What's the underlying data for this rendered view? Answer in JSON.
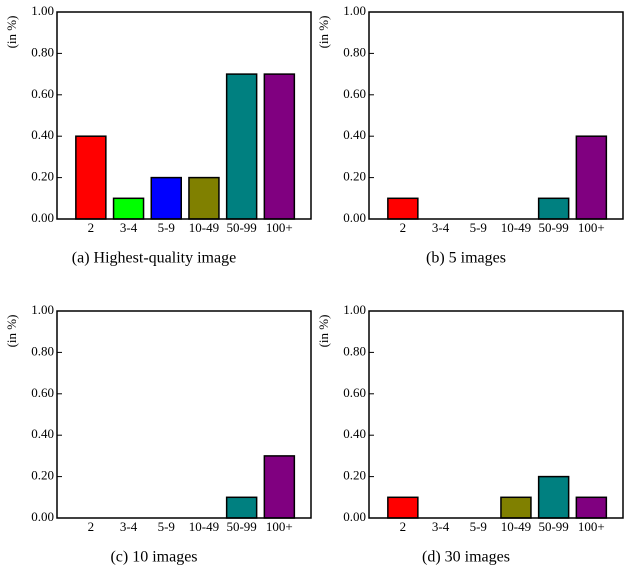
{
  "chart_data": [
    {
      "type": "bar",
      "title": "(a) Highest-quality image",
      "y_label": "(in %)",
      "categories": [
        "2",
        "3-4",
        "5-9",
        "10-49",
        "50-99",
        "100+"
      ],
      "values": [
        0.4,
        0.1,
        0.2,
        0.2,
        0.7,
        0.7
      ],
      "colors": [
        "#ff0000",
        "#00ff00",
        "#0000ff",
        "#808000",
        "#008080",
        "#800080"
      ],
      "ylim": [
        0,
        1
      ],
      "yticks": [
        {
          "value": 0,
          "label": "0.00"
        },
        {
          "value": 0.2,
          "label": "0.20"
        },
        {
          "value": 0.4,
          "label": "0.40"
        },
        {
          "value": 0.6,
          "label": "0.60"
        },
        {
          "value": 0.8,
          "label": "0.80"
        },
        {
          "value": 1,
          "label": "1.00"
        }
      ]
    },
    {
      "type": "bar",
      "title": "(b) 5 images",
      "y_label": "(in %)",
      "categories": [
        "2",
        "3-4",
        "5-9",
        "10-49",
        "50-99",
        "100+"
      ],
      "values": [
        0.1,
        0,
        0,
        0,
        0.1,
        0.4
      ],
      "colors": [
        "#ff0000",
        "#00ff00",
        "#0000ff",
        "#808000",
        "#008080",
        "#800080"
      ],
      "ylim": [
        0,
        1
      ],
      "yticks": [
        {
          "value": 0,
          "label": "0.00"
        },
        {
          "value": 0.2,
          "label": "0.20"
        },
        {
          "value": 0.4,
          "label": "0.40"
        },
        {
          "value": 0.6,
          "label": "0.60"
        },
        {
          "value": 0.8,
          "label": "0.80"
        },
        {
          "value": 1,
          "label": "1.00"
        }
      ]
    },
    {
      "type": "bar",
      "title": "(c) 10 images",
      "y_label": "(in %)",
      "categories": [
        "2",
        "3-4",
        "5-9",
        "10-49",
        "50-99",
        "100+"
      ],
      "values": [
        0,
        0,
        0,
        0,
        0.1,
        0.3
      ],
      "colors": [
        "#ff0000",
        "#00ff00",
        "#0000ff",
        "#808000",
        "#008080",
        "#800080"
      ],
      "ylim": [
        0,
        1
      ],
      "yticks": [
        {
          "value": 0,
          "label": "0.00"
        },
        {
          "value": 0.2,
          "label": "0.20"
        },
        {
          "value": 0.4,
          "label": "0.40"
        },
        {
          "value": 0.6,
          "label": "0.60"
        },
        {
          "value": 0.8,
          "label": "0.80"
        },
        {
          "value": 1,
          "label": "1.00"
        }
      ]
    },
    {
      "type": "bar",
      "title": "(d) 30 images",
      "y_label": "(in %)",
      "categories": [
        "2",
        "3-4",
        "5-9",
        "10-49",
        "50-99",
        "100+"
      ],
      "values": [
        0.1,
        0,
        0,
        0.1,
        0.2,
        0.1
      ],
      "colors": [
        "#ff0000",
        "#00ff00",
        "#0000ff",
        "#808000",
        "#008080",
        "#800080"
      ],
      "ylim": [
        0,
        1
      ],
      "yticks": [
        {
          "value": 0,
          "label": "0.00"
        },
        {
          "value": 0.2,
          "label": "0.20"
        },
        {
          "value": 0.4,
          "label": "0.40"
        },
        {
          "value": 0.6,
          "label": "0.60"
        },
        {
          "value": 0.8,
          "label": "0.80"
        },
        {
          "value": 1,
          "label": "1.00"
        }
      ]
    }
  ]
}
